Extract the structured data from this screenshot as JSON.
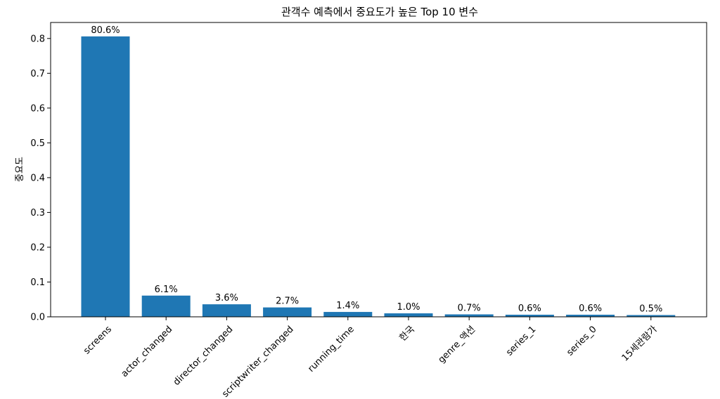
{
  "chart_data": {
    "type": "bar",
    "title": "관객수 예측에서 중요도가 높은 Top 10 변수",
    "xlabel": "",
    "ylabel": "중요도",
    "categories": [
      "screens",
      "actor_changed",
      "director_changed",
      "scriptwriter_changed",
      "running_time",
      "한국",
      "genre_액션",
      "series_1",
      "series_0",
      "15세관람가"
    ],
    "values": [
      0.806,
      0.061,
      0.036,
      0.027,
      0.014,
      0.01,
      0.007,
      0.006,
      0.006,
      0.005
    ],
    "data_labels": [
      "80.6%",
      "6.1%",
      "3.6%",
      "2.7%",
      "1.4%",
      "1.0%",
      "0.7%",
      "0.6%",
      "0.6%",
      "0.5%"
    ],
    "yticks": [
      0.0,
      0.1,
      0.2,
      0.3,
      0.4,
      0.5,
      0.6,
      0.7,
      0.8
    ],
    "ytick_labels": [
      "0.0",
      "0.1",
      "0.2",
      "0.3",
      "0.4",
      "0.5",
      "0.6",
      "0.7",
      "0.8"
    ],
    "ylim": [
      0,
      0.846
    ],
    "grid": false,
    "bar_color": "#1f77b4"
  }
}
